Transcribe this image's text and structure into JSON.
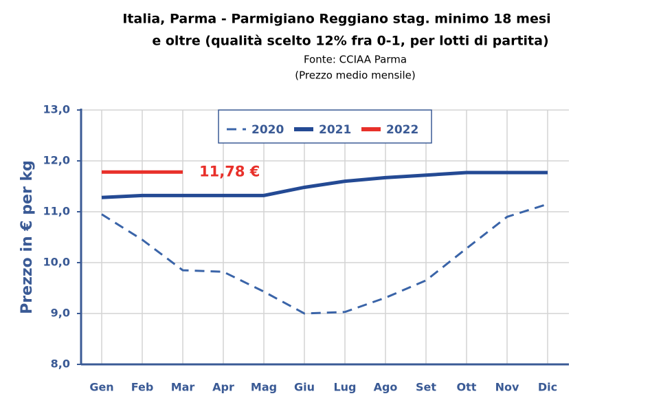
{
  "chart_data": {
    "type": "line",
    "title": [
      "Italia, Parma - Parmigiano Reggiano stag. minimo 18 mesi",
      "e oltre (qualità scelto 12% fra 0-1, per lotti di partita)"
    ],
    "subtitle": [
      "Fonte: CCIAA Parma",
      "(Prezzo medio mensile)"
    ],
    "y_label": "Prezzo in € per kg",
    "categories": [
      "Gen",
      "Feb",
      "Mar",
      "Apr",
      "Mag",
      "Giu",
      "Lug",
      "Ago",
      "Set",
      "Ott",
      "Nov",
      "Dic"
    ],
    "series": [
      {
        "name": "2020",
        "color": "#3a64a8",
        "dashed": true,
        "values": [
          10.95,
          10.45,
          9.85,
          9.82,
          9.43,
          9.0,
          9.03,
          9.31,
          9.65,
          10.28,
          10.9,
          11.15
        ]
      },
      {
        "name": "2021",
        "color": "#244a94",
        "dashed": false,
        "values": [
          11.28,
          11.32,
          11.32,
          11.32,
          11.32,
          11.48,
          11.6,
          11.67,
          11.72,
          11.77,
          11.77,
          11.77
        ]
      },
      {
        "name": "2022",
        "color": "#e8302a",
        "dashed": false,
        "values": [
          11.78,
          11.78,
          11.78,
          null,
          null,
          null,
          null,
          null,
          null,
          null,
          null,
          null
        ]
      }
    ],
    "annotation": {
      "text": "11,78 €",
      "color": "#e8302a"
    },
    "ylim": [
      8,
      13
    ],
    "yticks": [
      {
        "value": 8,
        "label": "8,0"
      },
      {
        "value": 9,
        "label": "9,0"
      },
      {
        "value": 10,
        "label": "10,0"
      },
      {
        "value": 11,
        "label": "11,0"
      },
      {
        "value": 12,
        "label": "12,0"
      },
      {
        "value": 13,
        "label": "13,0"
      }
    ],
    "grid": true,
    "legend": "top"
  }
}
